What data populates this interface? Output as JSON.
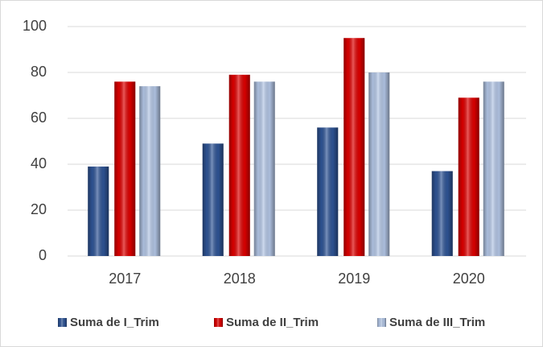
{
  "chart_data": {
    "type": "bar",
    "categories": [
      "2017",
      "2018",
      "2019",
      "2020"
    ],
    "series": [
      {
        "name": "Suma de I_Trim",
        "color": "#2f5597",
        "values": [
          39,
          49,
          56,
          37
        ]
      },
      {
        "name": "Suma de II_Trim",
        "color": "#e00000",
        "values": [
          76,
          79,
          95,
          69
        ]
      },
      {
        "name": "Suma de III_Trim",
        "color": "#b4c7e7",
        "values": [
          74,
          76,
          80,
          76
        ]
      }
    ],
    "ylim": [
      0,
      100
    ],
    "yticks": [
      0,
      20,
      40,
      60,
      80,
      100
    ],
    "grid": true,
    "legend": "bottom"
  }
}
